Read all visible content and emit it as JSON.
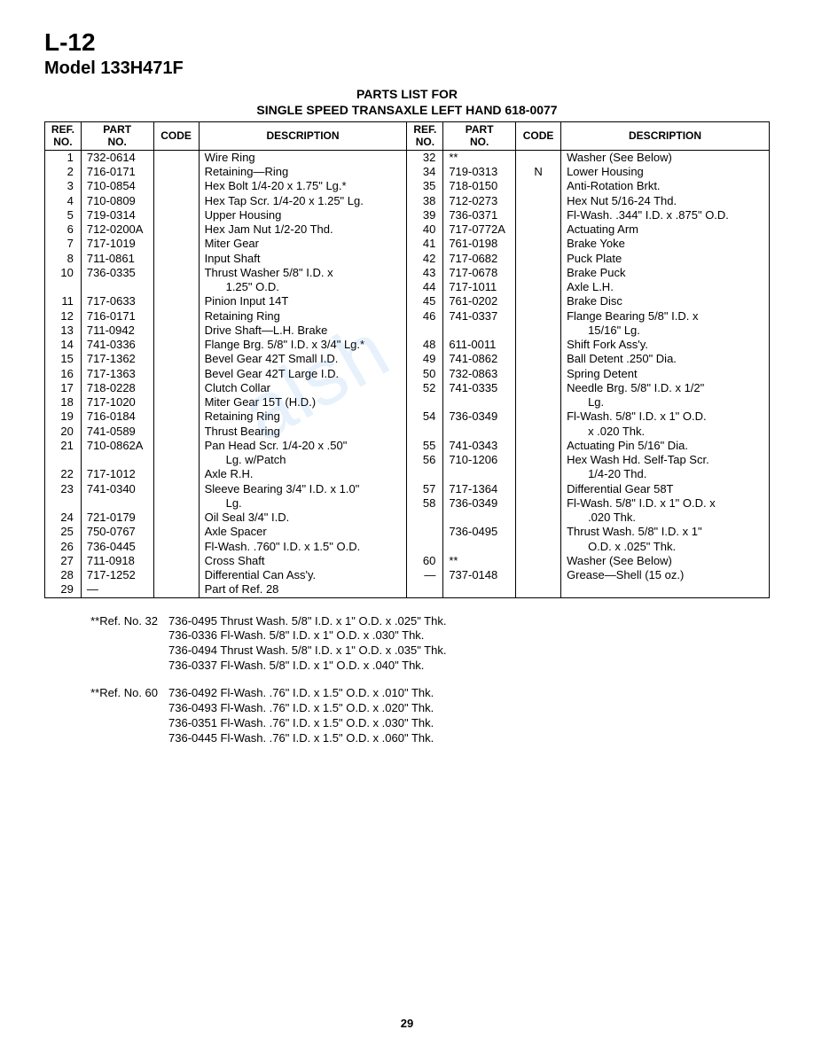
{
  "header": {
    "page_label": "L-12",
    "model": "Model 133H471F"
  },
  "title": {
    "line1": "PARTS LIST FOR",
    "line2": "SINGLE SPEED TRANSAXLE LEFT HAND 618-0077"
  },
  "columns": {
    "ref": "REF.\nNO.",
    "part": "PART\nNO.",
    "code": "CODE",
    "desc": "DESCRIPTION"
  },
  "rows_left": [
    {
      "ref": "1",
      "part": "732-0614",
      "code": "",
      "desc": "Wire Ring"
    },
    {
      "ref": "2",
      "part": "716-0171",
      "code": "",
      "desc": "Retaining—Ring"
    },
    {
      "ref": "3",
      "part": "710-0854",
      "code": "",
      "desc": "Hex Bolt 1/4-20 x 1.75\" Lg.*"
    },
    {
      "ref": "4",
      "part": "710-0809",
      "code": "",
      "desc": "Hex Tap Scr. 1/4-20 x 1.25\" Lg."
    },
    {
      "ref": "5",
      "part": "719-0314",
      "code": "",
      "desc": "Upper Housing"
    },
    {
      "ref": "6",
      "part": "712-0200A",
      "code": "",
      "desc": "Hex Jam Nut 1/2-20 Thd."
    },
    {
      "ref": "7",
      "part": "717-1019",
      "code": "",
      "desc": "Miter Gear"
    },
    {
      "ref": "8",
      "part": "711-0861",
      "code": "",
      "desc": "Input Shaft"
    },
    {
      "ref": "10",
      "part": "736-0335",
      "code": "",
      "desc": "Thrust Washer 5/8\" I.D. x"
    },
    {
      "ref": "",
      "part": "",
      "code": "",
      "desc": "    1.25\" O.D."
    },
    {
      "ref": "11",
      "part": "717-0633",
      "code": "",
      "desc": "Pinion Input 14T"
    },
    {
      "ref": "12",
      "part": "716-0171",
      "code": "",
      "desc": "Retaining Ring"
    },
    {
      "ref": "13",
      "part": "711-0942",
      "code": "",
      "desc": "Drive Shaft—L.H. Brake"
    },
    {
      "ref": "14",
      "part": "741-0336",
      "code": "",
      "desc": "Flange Brg. 5/8\" I.D. x 3/4\" Lg.*"
    },
    {
      "ref": "15",
      "part": "717-1362",
      "code": "",
      "desc": "Bevel Gear 42T Small I.D."
    },
    {
      "ref": "16",
      "part": "717-1363",
      "code": "",
      "desc": "Bevel Gear 42T Large I.D."
    },
    {
      "ref": "17",
      "part": "718-0228",
      "code": "",
      "desc": "Clutch Collar"
    },
    {
      "ref": "18",
      "part": "717-1020",
      "code": "",
      "desc": "Miter Gear 15T (H.D.)"
    },
    {
      "ref": "19",
      "part": "716-0184",
      "code": "",
      "desc": "Retaining Ring"
    },
    {
      "ref": "20",
      "part": "741-0589",
      "code": "",
      "desc": "Thrust Bearing"
    },
    {
      "ref": "21",
      "part": "710-0862A",
      "code": "",
      "desc": "Pan Head Scr. 1/4-20 x .50\""
    },
    {
      "ref": "",
      "part": "",
      "code": "",
      "desc": "    Lg. w/Patch"
    },
    {
      "ref": "22",
      "part": "717-1012",
      "code": "",
      "desc": "Axle R.H."
    },
    {
      "ref": "23",
      "part": "741-0340",
      "code": "",
      "desc": "Sleeve Bearing 3/4\" I.D. x 1.0\""
    },
    {
      "ref": "",
      "part": "",
      "code": "",
      "desc": "    Lg."
    },
    {
      "ref": "24",
      "part": "721-0179",
      "code": "",
      "desc": "Oil Seal 3/4\" I.D."
    },
    {
      "ref": "25",
      "part": "750-0767",
      "code": "",
      "desc": "Axle Spacer"
    },
    {
      "ref": "26",
      "part": "736-0445",
      "code": "",
      "desc": "Fl-Wash. .760\" I.D. x 1.5\" O.D."
    },
    {
      "ref": "27",
      "part": "711-0918",
      "code": "",
      "desc": "Cross Shaft"
    },
    {
      "ref": "28",
      "part": "717-1252",
      "code": "",
      "desc": "Differential Can Ass'y."
    },
    {
      "ref": "29",
      "part": "—",
      "code": "",
      "desc": "Part of Ref. 28"
    }
  ],
  "rows_right": [
    {
      "ref": "32",
      "part": "**",
      "code": "",
      "desc": "Washer (See Below)"
    },
    {
      "ref": "34",
      "part": "719-0313",
      "code": "N",
      "desc": "Lower Housing"
    },
    {
      "ref": "35",
      "part": "718-0150",
      "code": "",
      "desc": "Anti-Rotation Brkt."
    },
    {
      "ref": "38",
      "part": "712-0273",
      "code": "",
      "desc": "Hex Nut 5/16-24 Thd."
    },
    {
      "ref": "39",
      "part": "736-0371",
      "code": "",
      "desc": "Fl-Wash. .344\" I.D. x .875\" O.D."
    },
    {
      "ref": "40",
      "part": "717-0772A",
      "code": "",
      "desc": "Actuating Arm"
    },
    {
      "ref": "41",
      "part": "761-0198",
      "code": "",
      "desc": "Brake Yoke"
    },
    {
      "ref": "42",
      "part": "717-0682",
      "code": "",
      "desc": "Puck Plate"
    },
    {
      "ref": "43",
      "part": "717-0678",
      "code": "",
      "desc": "Brake Puck"
    },
    {
      "ref": "44",
      "part": "717-1011",
      "code": "",
      "desc": "Axle L.H."
    },
    {
      "ref": "45",
      "part": "761-0202",
      "code": "",
      "desc": "Brake Disc"
    },
    {
      "ref": "46",
      "part": "741-0337",
      "code": "",
      "desc": "Flange Bearing 5/8\" I.D. x"
    },
    {
      "ref": "",
      "part": "",
      "code": "",
      "desc": "    15/16\" Lg."
    },
    {
      "ref": "48",
      "part": "611-0011",
      "code": "",
      "desc": "Shift Fork Ass'y."
    },
    {
      "ref": "49",
      "part": "741-0862",
      "code": "",
      "desc": "Ball Detent .250\" Dia."
    },
    {
      "ref": "50",
      "part": "732-0863",
      "code": "",
      "desc": "Spring Detent"
    },
    {
      "ref": "52",
      "part": "741-0335",
      "code": "",
      "desc": "Needle Brg. 5/8\" I.D. x 1/2\""
    },
    {
      "ref": "",
      "part": "",
      "code": "",
      "desc": "    Lg."
    },
    {
      "ref": "54",
      "part": "736-0349",
      "code": "",
      "desc": "Fl-Wash. 5/8\" I.D. x 1\" O.D."
    },
    {
      "ref": "",
      "part": "",
      "code": "",
      "desc": "    x .020 Thk."
    },
    {
      "ref": "55",
      "part": "741-0343",
      "code": "",
      "desc": "Actuating Pin 5/16\" Dia."
    },
    {
      "ref": "56",
      "part": "710-1206",
      "code": "",
      "desc": "Hex Wash Hd. Self-Tap Scr."
    },
    {
      "ref": "",
      "part": "",
      "code": "",
      "desc": "    1/4-20 Thd."
    },
    {
      "ref": "57",
      "part": "717-1364",
      "code": "",
      "desc": "Differential Gear 58T"
    },
    {
      "ref": "58",
      "part": "736-0349",
      "code": "",
      "desc": "Fl-Wash. 5/8\" I.D. x 1\" O.D. x"
    },
    {
      "ref": "",
      "part": "",
      "code": "",
      "desc": "    .020 Thk."
    },
    {
      "ref": "",
      "part": "736-0495",
      "code": "",
      "desc": "Thrust Wash. 5/8\" I.D. x 1\""
    },
    {
      "ref": "",
      "part": "",
      "code": "",
      "desc": "    O.D. x .025\" Thk."
    },
    {
      "ref": "60",
      "part": "**",
      "code": "",
      "desc": "Washer (See Below)"
    },
    {
      "ref": "—",
      "part": "737-0148",
      "code": "",
      "desc": "Grease—Shell (15 oz.)"
    },
    {
      "ref": "",
      "part": "",
      "code": "",
      "desc": ""
    }
  ],
  "footnotes": [
    {
      "label": "**Ref. No. 32",
      "lines": [
        "736-0495 Thrust Wash. 5/8\" I.D. x 1\" O.D. x .025\" Thk.",
        "736-0336 Fl-Wash. 5/8\" I.D. x 1\" O.D. x .030\" Thk.",
        "736-0494 Thrust Wash. 5/8\" I.D. x 1\" O.D. x .035\" Thk.",
        "736-0337 Fl-Wash. 5/8\" I.D. x 1\" O.D. x .040\" Thk."
      ]
    },
    {
      "label": "**Ref. No. 60",
      "lines": [
        "736-0492 Fl-Wash. .76\" I.D. x 1.5\" O.D. x .010\" Thk.",
        "736-0493 Fl-Wash. .76\" I.D. x 1.5\" O.D. x .020\" Thk.",
        "736-0351 Fl-Wash. .76\" I.D. x 1.5\" O.D. x .030\" Thk.",
        "736-0445 Fl-Wash. .76\" I.D. x 1.5\" O.D. x .060\" Thk."
      ]
    }
  ],
  "page_number": "29",
  "watermark": "alsh"
}
